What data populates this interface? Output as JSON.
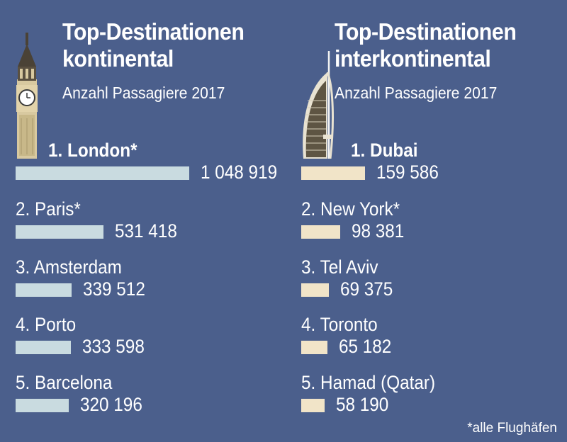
{
  "chart_data": [
    {
      "type": "bar",
      "title": "Top-Destinationen kontinental",
      "subtitle": "Anzahl Passagiere 2017",
      "categories": [
        "1. London*",
        "2. Paris*",
        "3. Amsterdam",
        "4. Porto",
        "5. Barcelona"
      ],
      "value_labels": [
        "1 048 919",
        "531 418",
        "339 512",
        "333 598",
        "320 196"
      ],
      "values": [
        1048919,
        531418,
        339512,
        333598,
        320196
      ],
      "bar_color": "#c9dbe0"
    },
    {
      "type": "bar",
      "title": "Top-Destinationen interkontinental",
      "subtitle": "Anzahl Passagiere 2017",
      "categories": [
        "1. Dubai",
        "2.   New York*",
        "3. Tel Aviv",
        "4. Toronto",
        "5. Hamad (Qatar)"
      ],
      "value_labels": [
        "159 586",
        "98 381",
        "69 375",
        "65 182",
        "58 190"
      ],
      "values": [
        159586,
        98381,
        69375,
        65182,
        58190
      ],
      "bar_color": "#f1e4c8"
    }
  ],
  "footnote": "*alle Flughäfen",
  "colors": {
    "background": "#4b5f8c",
    "text": "#ffffff"
  },
  "icons": {
    "left": "big-ben-icon",
    "right": "burj-al-arab-icon"
  }
}
